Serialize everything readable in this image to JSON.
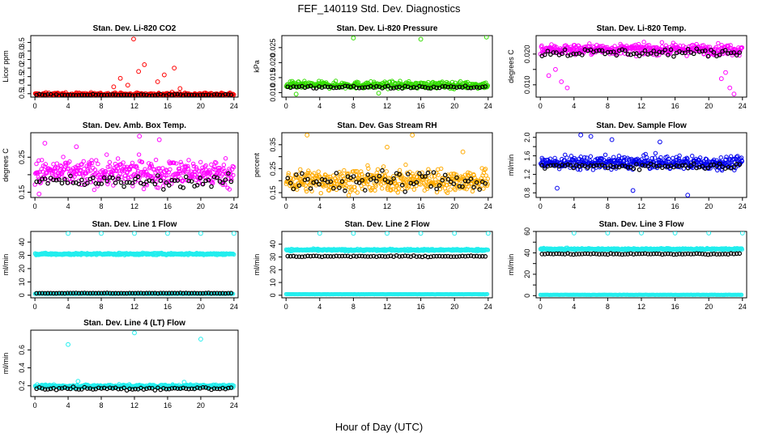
{
  "figure": {
    "title": "FEF_140119  Std. Dev. Diagnostics",
    "xlabel": "Hour of Day (UTC)"
  },
  "colors": {
    "frame": "#000000",
    "points_overlay": "#000000"
  },
  "chart_data": [
    {
      "type": "scatter",
      "title": "Stan. Dev. Li-820 CO2",
      "ylabel": "Licor ppm",
      "color": "#ff0000",
      "xlim": [
        -0.5,
        24.5
      ],
      "ylim": [
        0.3,
        3.9
      ],
      "xticks": [
        0,
        4,
        8,
        12,
        16,
        20,
        24
      ],
      "yticks": [
        0.5,
        1.0,
        1.5,
        2.0,
        2.5,
        3.0,
        3.5
      ],
      "ytick_labels": [
        "0.5",
        "1.0",
        "1.5",
        "2.0",
        "2.5",
        "3.0",
        "3.5"
      ],
      "base": 0.45,
      "spread": 0.12,
      "black_base": 0.42,
      "black_spread": 0.05,
      "outliers": [
        [
          11.9,
          3.7
        ],
        [
          13.2,
          2.2
        ],
        [
          12.5,
          1.8
        ],
        [
          16.8,
          2.0
        ],
        [
          15.6,
          1.6
        ],
        [
          10.3,
          1.4
        ],
        [
          11.2,
          1.0
        ],
        [
          14.8,
          1.2
        ],
        [
          9.5,
          0.9
        ],
        [
          17.5,
          0.8
        ]
      ]
    },
    {
      "type": "scatter",
      "title": "Stan. Dev. Li-820 Pressure",
      "ylabel": "kPa",
      "color": "#33dd00",
      "xlim": [
        -0.5,
        24.5
      ],
      "ylim": [
        0.0085,
        0.029
      ],
      "xticks": [
        0,
        4,
        8,
        12,
        16,
        20,
        24
      ],
      "yticks": [
        0.01,
        0.015,
        0.02,
        0.025
      ],
      "ytick_labels": [
        "0.010",
        "0.015",
        "0.020",
        "0.025"
      ],
      "base": 0.0125,
      "spread": 0.0012,
      "black_base": 0.0118,
      "black_spread": 0.0006,
      "outliers": [
        [
          8.0,
          0.0282
        ],
        [
          16.0,
          0.0278
        ],
        [
          23.8,
          0.0285
        ],
        [
          1.2,
          0.0095
        ],
        [
          11.0,
          0.0098
        ]
      ]
    },
    {
      "type": "scatter",
      "title": "Stan. Dev. Li-820 Temp.",
      "ylabel": "degrees C",
      "color": "#ff00ff",
      "xlim": [
        -0.5,
        24.5
      ],
      "ylim": [
        0.006,
        0.026
      ],
      "xticks": [
        0,
        4,
        8,
        12,
        16,
        20,
        24
      ],
      "yticks": [
        0.01,
        0.015,
        0.02
      ],
      "ytick_labels": [
        "0.010",
        "",
        "0.020"
      ],
      "base": 0.0215,
      "spread": 0.0018,
      "black_base": 0.0205,
      "black_spread": 0.0015,
      "outliers": [
        [
          1.0,
          0.013
        ],
        [
          2.5,
          0.011
        ],
        [
          3.2,
          0.009
        ],
        [
          21.5,
          0.012
        ],
        [
          22.5,
          0.009
        ],
        [
          23.0,
          0.007
        ],
        [
          1.8,
          0.015
        ],
        [
          22.0,
          0.014
        ]
      ]
    },
    {
      "type": "scatter",
      "title": "Stan. Dev. Amb. Box Temp.",
      "ylabel": "degrees C",
      "color": "#ff00ff",
      "xlim": [
        -0.5,
        24.5
      ],
      "ylim": [
        0.135,
        0.32
      ],
      "xticks": [
        0,
        4,
        8,
        12,
        16,
        20,
        24
      ],
      "yticks": [
        0.15,
        0.2,
        0.25
      ],
      "ytick_labels": [
        "0.15",
        "",
        "0.25"
      ],
      "base": 0.205,
      "spread": 0.04,
      "black_base": 0.18,
      "black_spread": 0.02,
      "outliers": [
        [
          12.6,
          0.31
        ],
        [
          15.0,
          0.3
        ],
        [
          1.2,
          0.29
        ],
        [
          5.0,
          0.28
        ],
        [
          0.5,
          0.145
        ]
      ]
    },
    {
      "type": "scatter",
      "title": "Stan. Dev. Gas Stream RH",
      "ylabel": "percent",
      "color": "#ffaa00",
      "xlim": [
        -0.5,
        24.5
      ],
      "ylim": [
        0.13,
        0.4
      ],
      "xticks": [
        0,
        4,
        8,
        12,
        16,
        20,
        24
      ],
      "yticks": [
        0.15,
        0.2,
        0.25,
        0.3,
        0.35
      ],
      "ytick_labels": [
        "0.15",
        "",
        "0.25",
        "",
        "0.35"
      ],
      "base": 0.2,
      "spread": 0.05,
      "black_base": 0.2,
      "black_spread": 0.05,
      "outliers": [
        [
          2.5,
          0.39
        ],
        [
          15.0,
          0.39
        ],
        [
          12.0,
          0.34
        ],
        [
          21.0,
          0.32
        ]
      ]
    },
    {
      "type": "scatter",
      "title": "Stan. Dev. Sample Flow",
      "ylabel": "ml/min",
      "color": "#0000ee",
      "xlim": [
        -0.5,
        24.5
      ],
      "ylim": [
        0.7,
        2.1
      ],
      "xticks": [
        0,
        4,
        8,
        12,
        16,
        20,
        24
      ],
      "yticks": [
        0.8,
        1.0,
        1.2,
        1.4,
        1.6,
        1.8,
        2.0
      ],
      "ytick_labels": [
        "0.8",
        "",
        "1.2",
        "",
        "1.6",
        "",
        "2.0"
      ],
      "base": 1.45,
      "spread": 0.15,
      "black_base": 1.38,
      "black_spread": 0.07,
      "outliers": [
        [
          4.8,
          2.05
        ],
        [
          6.0,
          2.02
        ],
        [
          8.5,
          1.95
        ],
        [
          14.2,
          1.9
        ],
        [
          17.5,
          0.75
        ],
        [
          11.0,
          0.85
        ],
        [
          2.0,
          0.9
        ]
      ]
    },
    {
      "type": "scatter",
      "title": "Stan. Dev. Line 1 Flow",
      "ylabel": "ml/min",
      "color": "#22eeee",
      "xlim": [
        -0.5,
        24.5
      ],
      "ylim": [
        -2,
        48
      ],
      "xticks": [
        0,
        4,
        8,
        12,
        16,
        20,
        24
      ],
      "yticks": [
        0,
        10,
        20,
        30,
        40
      ],
      "ytick_labels": [
        "0",
        "10",
        "20",
        "30",
        "40"
      ],
      "base": 31.0,
      "spread": 0.8,
      "black_base": 1.5,
      "black_spread": 0.2,
      "low_band": 1.0,
      "outliers": [
        [
          4.0,
          46.5
        ],
        [
          8.0,
          46.5
        ],
        [
          12.0,
          46.5
        ],
        [
          16.0,
          46.5
        ],
        [
          20.0,
          46.5
        ],
        [
          24.0,
          46.5
        ]
      ]
    },
    {
      "type": "scatter",
      "title": "Stan. Dev. Line 2 Flow",
      "ylabel": "ml/min",
      "color": "#22eeee",
      "xlim": [
        -0.5,
        24.5
      ],
      "ylim": [
        -2,
        50
      ],
      "xticks": [
        0,
        4,
        8,
        12,
        16,
        20,
        24
      ],
      "yticks": [
        0,
        10,
        20,
        30,
        40
      ],
      "ytick_labels": [
        "0",
        "10",
        "20",
        "30",
        "40"
      ],
      "base": 35.5,
      "spread": 0.8,
      "black_base": 30.5,
      "black_spread": 0.5,
      "low_band": 0.8,
      "outliers": [
        [
          4.0,
          48.5
        ],
        [
          8.0,
          48.5
        ],
        [
          12.0,
          48.5
        ],
        [
          16.0,
          48.5
        ],
        [
          20.0,
          48.5
        ],
        [
          24.0,
          48.5
        ]
      ]
    },
    {
      "type": "scatter",
      "title": "Stan. Dev. Line 3 Flow",
      "ylabel": "ml/min",
      "color": "#22eeee",
      "xlim": [
        -0.5,
        24.5
      ],
      "ylim": [
        -2,
        60
      ],
      "xticks": [
        0,
        4,
        8,
        12,
        16,
        20,
        24
      ],
      "yticks": [
        0,
        10,
        20,
        30,
        40,
        50,
        60
      ],
      "ytick_labels": [
        "0",
        "",
        "20",
        "",
        "40",
        "",
        "60"
      ],
      "base": 43.5,
      "spread": 0.9,
      "black_base": 39.0,
      "black_spread": 0.6,
      "low_band": 0.8,
      "outliers": [
        [
          4.0,
          58.5
        ],
        [
          8.0,
          58.5
        ],
        [
          12.0,
          58.5
        ],
        [
          16.0,
          58.5
        ],
        [
          20.0,
          58.5
        ],
        [
          24.0,
          58.5
        ]
      ]
    },
    {
      "type": "scatter",
      "title": "Stan. Dev. Line 4 (LT) Flow",
      "ylabel": "ml/min",
      "color": "#22eeee",
      "xlim": [
        -0.5,
        24.5
      ],
      "ylim": [
        0.08,
        0.82
      ],
      "xticks": [
        0,
        4,
        8,
        12,
        16,
        20,
        24
      ],
      "yticks": [
        0.2,
        0.4,
        0.6
      ],
      "ytick_labels": [
        "0.2",
        "0.4",
        "0.6"
      ],
      "base": 0.195,
      "spread": 0.02,
      "black_base": 0.17,
      "black_spread": 0.02,
      "outliers": [
        [
          4.0,
          0.66
        ],
        [
          12.0,
          0.79
        ],
        [
          20.0,
          0.72
        ],
        [
          5.2,
          0.25
        ],
        [
          18.0,
          0.24
        ]
      ]
    }
  ]
}
